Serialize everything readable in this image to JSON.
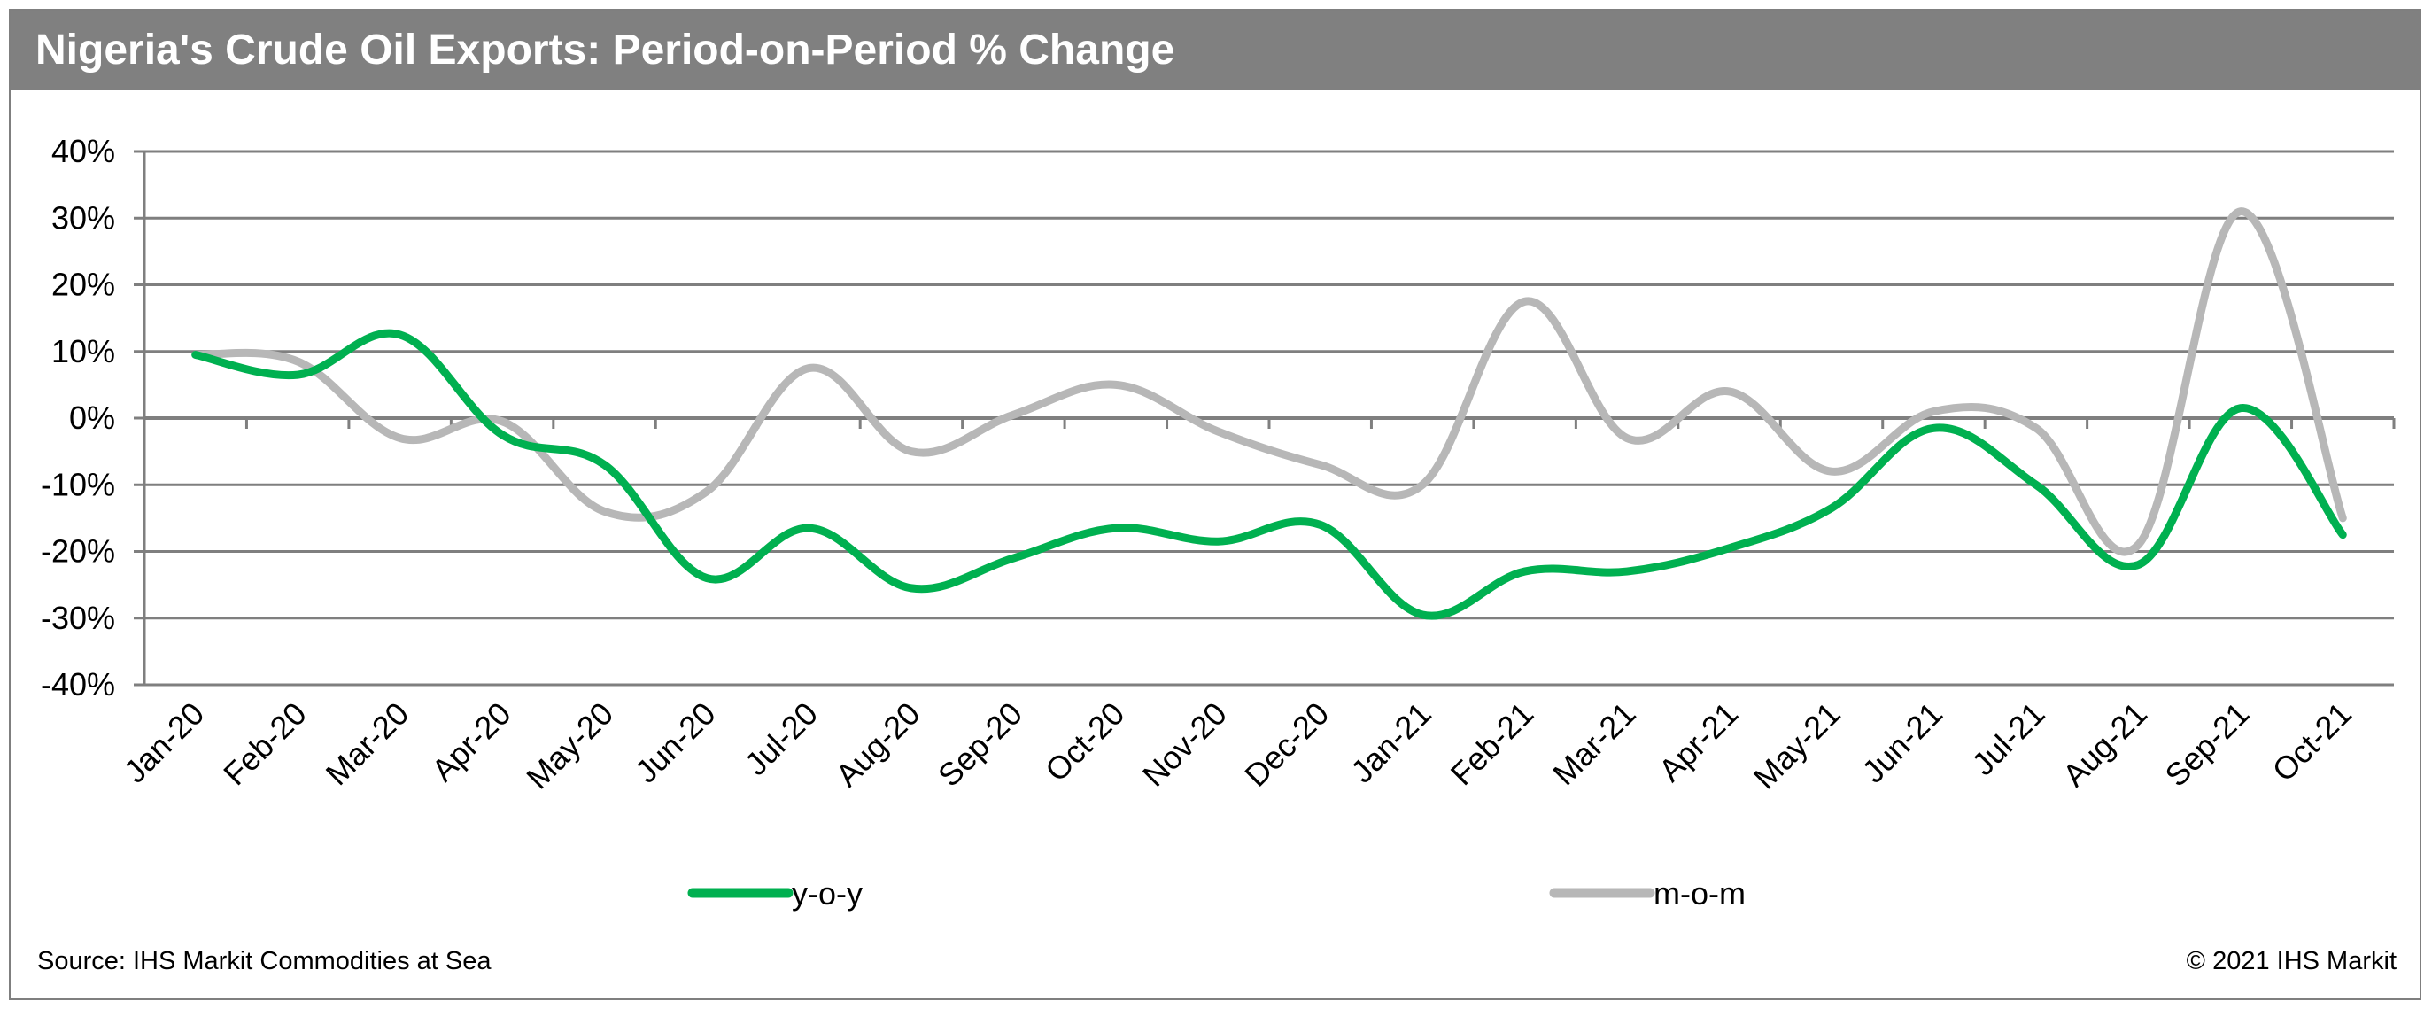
{
  "chart_data": {
    "type": "line",
    "title": "Nigeria's Crude Oil Exports: Period-on-Period % Change",
    "xlabel": "",
    "ylabel": "",
    "categories": [
      "Jan-20",
      "Feb-20",
      "Mar-20",
      "Apr-20",
      "May-20",
      "Jun-20",
      "Jul-20",
      "Aug-20",
      "Sep-20",
      "Oct-20",
      "Nov-20",
      "Dec-20",
      "Jan-21",
      "Feb-21",
      "Mar-21",
      "Apr-21",
      "May-21",
      "Jun-21",
      "Jul-21",
      "Aug-21",
      "Sep-21",
      "Oct-21"
    ],
    "yticks": [
      "40%",
      "30%",
      "20%",
      "10%",
      "0%",
      "-10%",
      "-20%",
      "-30%",
      "-40%"
    ],
    "ylim": [
      -40,
      40
    ],
    "grid": true,
    "legend_position": "bottom",
    "series": [
      {
        "name": "y-o-y",
        "color": "#00b050",
        "values": [
          9.5,
          6.5,
          12.5,
          -2.5,
          -7,
          -24,
          -16.5,
          -25.5,
          -21,
          -16.5,
          -18.5,
          -16,
          -29.5,
          -23,
          -23,
          -19.5,
          -13.5,
          -1.5,
          -10,
          -22,
          1.5,
          -17.5
        ]
      },
      {
        "name": "m-o-m",
        "color": "#b7b7b7",
        "values": [
          9.5,
          8.5,
          -3,
          -0.5,
          -14,
          -11,
          7.5,
          -5,
          0.5,
          5,
          -2,
          -7,
          -10,
          17.5,
          -3,
          4,
          -8,
          1,
          -1.5,
          -19,
          31,
          -15
        ]
      }
    ]
  },
  "footer": {
    "source": "Source: IHS Markit Commodities at Sea",
    "copyright": "© 2021 IHS Markit"
  }
}
